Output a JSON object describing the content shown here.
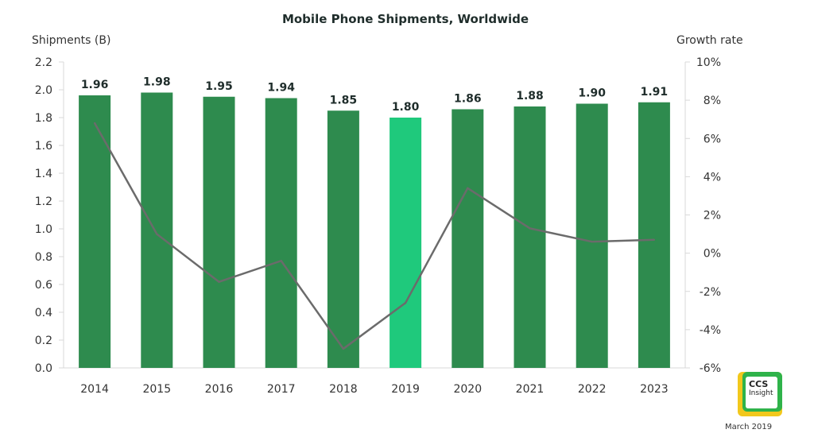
{
  "chart_data": {
    "type": "bar+line",
    "title": "Mobile Phone Shipments, Worldwide",
    "ylabel_left": "Shipments (B)",
    "ylabel_right": "Growth rate",
    "categories": [
      "2014",
      "2015",
      "2016",
      "2017",
      "2018",
      "2019",
      "2020",
      "2021",
      "2022",
      "2023"
    ],
    "series": [
      {
        "name": "Shipments (B)",
        "kind": "bar",
        "axis": "left",
        "values": [
          1.96,
          1.98,
          1.95,
          1.94,
          1.85,
          1.8,
          1.86,
          1.88,
          1.9,
          1.91
        ],
        "labels": [
          "1.96",
          "1.98",
          "1.95",
          "1.94",
          "1.85",
          "1.80",
          "1.86",
          "1.88",
          "1.90",
          "1.91"
        ],
        "highlight_index": 5
      },
      {
        "name": "Growth rate",
        "kind": "line",
        "axis": "right",
        "values": [
          6.8,
          1.0,
          -1.5,
          -0.4,
          -5.0,
          -2.6,
          3.4,
          1.3,
          0.6,
          0.7
        ]
      }
    ],
    "ylim_left": [
      0,
      2.2
    ],
    "yticks_left": [
      "0.0",
      "0.2",
      "0.4",
      "0.6",
      "0.8",
      "1.0",
      "1.2",
      "1.4",
      "1.6",
      "1.8",
      "2.0",
      "2.2"
    ],
    "ylim_right": [
      -6,
      10
    ],
    "yticks_right": [
      "-6%",
      "-4%",
      "-2%",
      "0%",
      "2%",
      "4%",
      "6%",
      "8%",
      "10%"
    ],
    "grid": false
  },
  "colors": {
    "bar": "#2e8b4e",
    "bar_highlight": "#1fc97c",
    "line": "#6b6b6b",
    "axis": "#d9d9d9",
    "text": "#333333"
  },
  "branding": {
    "logo_line1": "CCS",
    "logo_line2": "Insight",
    "date": "March 2019"
  }
}
